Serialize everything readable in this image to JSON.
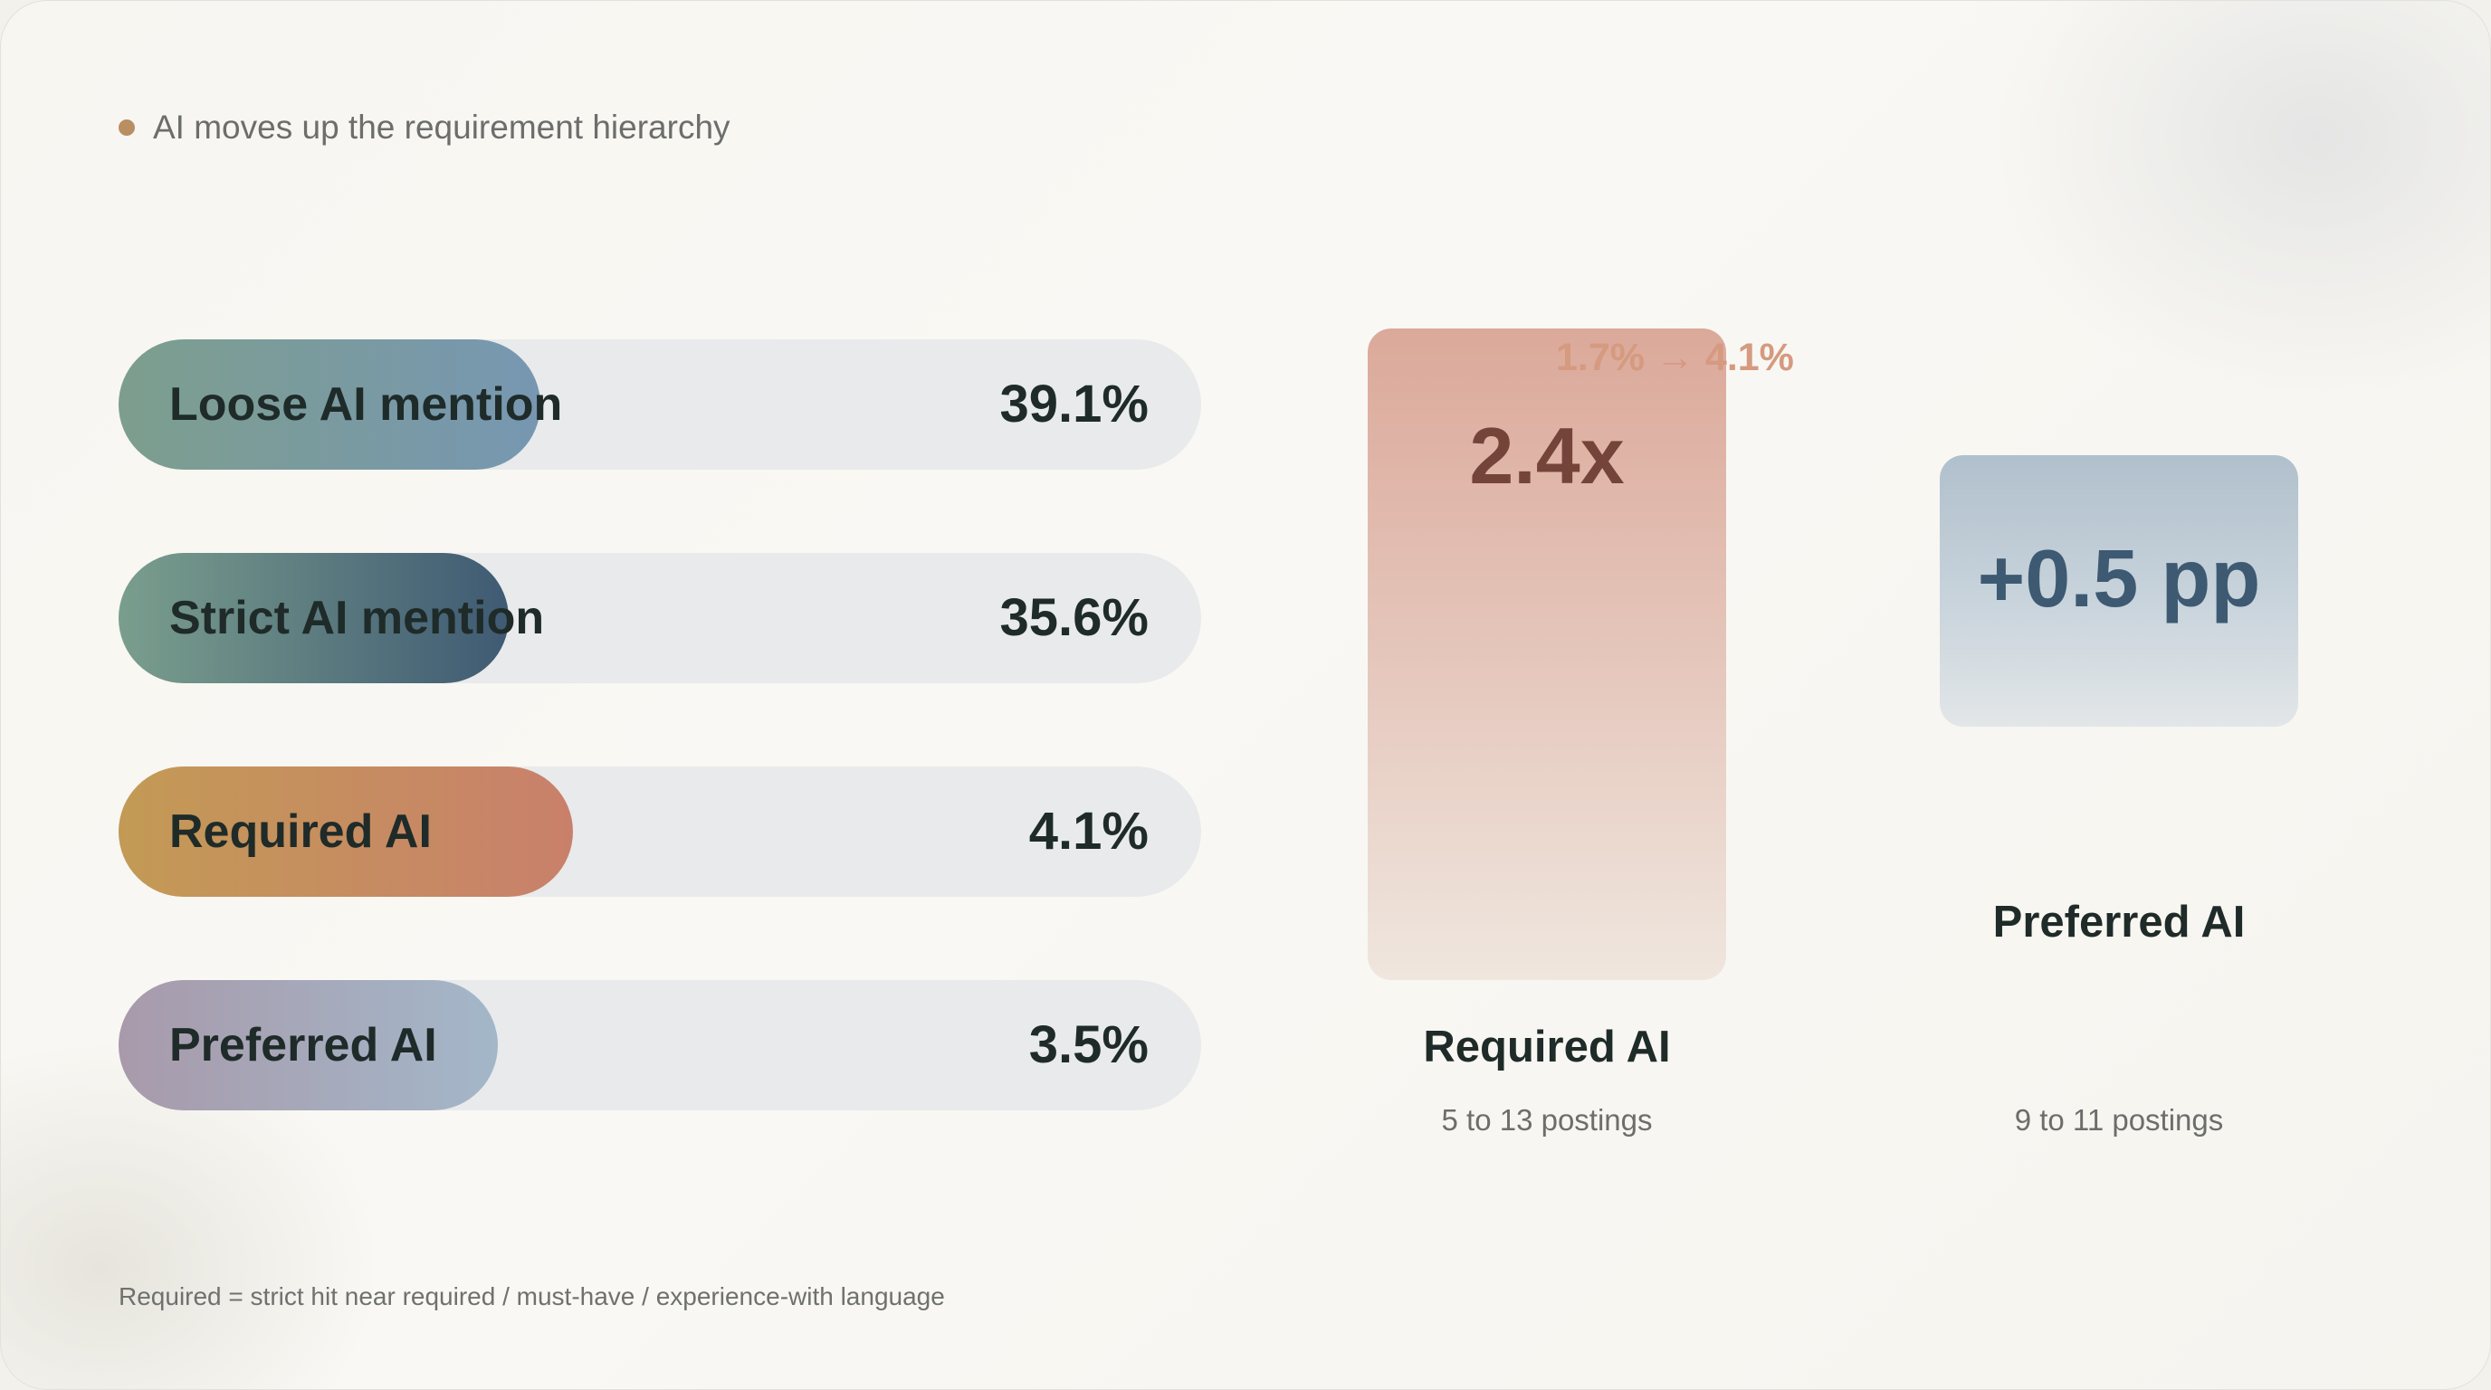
{
  "kicker": "AI moves up the requirement hierarchy",
  "colors": {
    "accent_dot": "#b98e62",
    "track": "#e8eaeb",
    "text_dark": "#1f2b29",
    "text_muted": "#6c6e6c"
  },
  "chart_data": [
    {
      "type": "bar",
      "orientation": "horizontal",
      "categories": [
        "Loose AI mention",
        "Strict AI mention",
        "Required AI",
        "Preferred AI"
      ],
      "values": [
        39.1,
        35.6,
        4.1,
        3.5
      ],
      "value_labels": [
        "39.1%",
        "35.6%",
        "4.1%",
        "3.5%"
      ],
      "fill_fraction": [
        0.39,
        0.36,
        0.42,
        0.35
      ],
      "colors": [
        [
          "#7d9e8d",
          "#7797b2"
        ],
        [
          "#7a9e8d",
          "#3f5a73"
        ],
        [
          "#c39a55",
          "#c9806b"
        ],
        [
          "#a89aab",
          "#a3b7c9"
        ]
      ]
    },
    {
      "type": "stat-tiles",
      "tiles": [
        {
          "name": "Required AI",
          "big": "2.4x",
          "change": "1.7% → 4.1%",
          "sub": "5 to 13 postings"
        },
        {
          "name": "Preferred AI",
          "big": "+0.5 pp",
          "change": "",
          "sub": "9 to 11 postings"
        }
      ]
    }
  ],
  "footnote": "Required = strict hit near required / must-have / experience-with language"
}
